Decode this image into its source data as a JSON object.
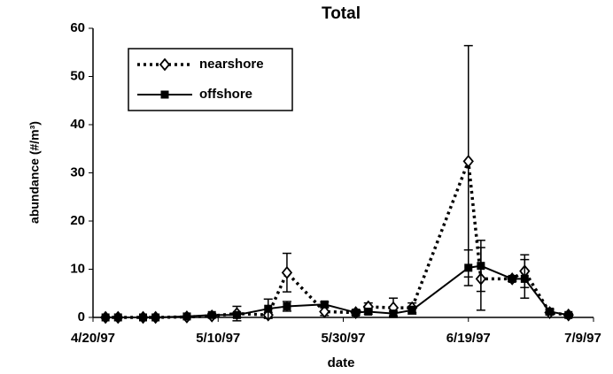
{
  "chart_data": {
    "type": "line",
    "title": "Total",
    "x_label": "date",
    "y_label": "abundance (#/m³)",
    "x": [
      "4/22/97",
      "4/24/97",
      "4/28/97",
      "4/30/97",
      "5/5/97",
      "5/9/97",
      "5/13/97",
      "5/18/97",
      "5/21/97",
      "5/27/97",
      "6/1/97",
      "6/3/97",
      "6/7/97",
      "6/10/97",
      "6/19/97",
      "6/21/97",
      "6/26/97",
      "6/28/97",
      "7/2/97",
      "7/5/97"
    ],
    "series": [
      {
        "name": "nearshore",
        "color": "#000000",
        "line_style": "dotted",
        "marker": "diamond",
        "values": [
          0,
          0,
          0,
          0,
          0.1,
          0.3,
          0.8,
          0.5,
          9.3,
          1.2,
          1,
          2.2,
          2,
          2,
          32.4,
          8,
          8,
          9.6,
          1,
          0.5
        ],
        "errors": [
          0,
          0,
          0,
          0,
          0,
          0.3,
          1.5,
          0.5,
          4,
          0.8,
          0.5,
          0.8,
          2,
          1,
          24,
          6.5,
          0.5,
          3.4,
          0.5,
          0.3
        ]
      },
      {
        "name": "offshore",
        "color": "#000000",
        "line_style": "solid",
        "marker": "square",
        "values": [
          0,
          0,
          0,
          0,
          0.2,
          0.5,
          0.5,
          1.8,
          2.3,
          2.7,
          1,
          1.2,
          0.8,
          1.5,
          10.3,
          10.7,
          8,
          8,
          1.2,
          0.5
        ],
        "errors": [
          0,
          0,
          0,
          0,
          0,
          0.3,
          0.5,
          2,
          1,
          0.5,
          0.5,
          0.5,
          0.5,
          0.8,
          3.7,
          5.3,
          0.5,
          4,
          0.6,
          0.3
        ]
      }
    ],
    "xlim": [
      "4/20/97",
      "7/9/97"
    ],
    "xticks": [
      "4/20/97",
      "5/10/97",
      "5/30/97",
      "6/19/97",
      "7/9/97"
    ],
    "ylim": [
      0,
      60
    ],
    "yticks": [
      0,
      10,
      20,
      30,
      40,
      50,
      60
    ],
    "grid": false,
    "legend": "upper left"
  }
}
